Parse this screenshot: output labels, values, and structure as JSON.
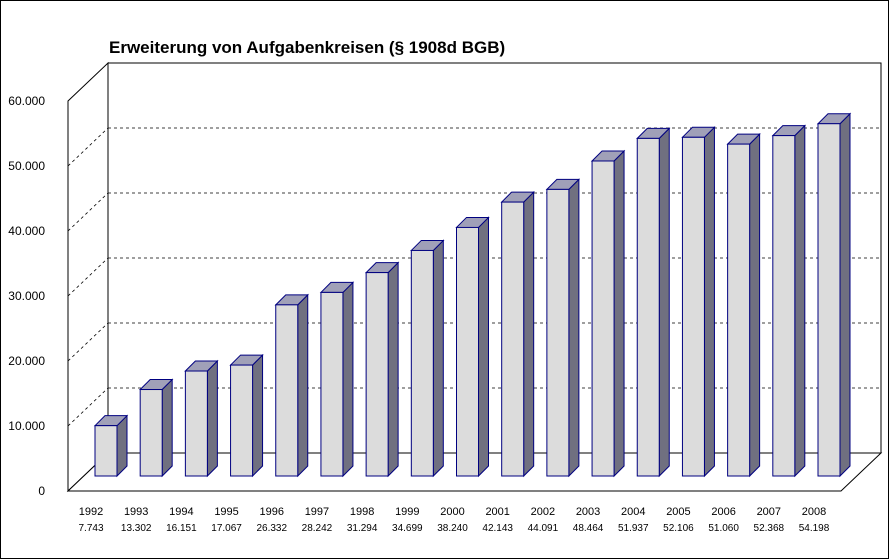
{
  "chart_data": {
    "type": "bar",
    "title": "Erweiterung von Aufgabenkreisen (§ 1908d BGB)",
    "xlabel": "",
    "ylabel": "",
    "ylim": [
      0,
      60000
    ],
    "yticks": [
      0,
      10000,
      20000,
      30000,
      40000,
      50000,
      60000
    ],
    "ytick_labels": [
      "0",
      "10.000",
      "20.000",
      "30.000",
      "40.000",
      "50.000",
      "60.000"
    ],
    "categories": [
      "1992",
      "1993",
      "1994",
      "1995",
      "1996",
      "1997",
      "1998",
      "1999",
      "2000",
      "2001",
      "2002",
      "2003",
      "2004",
      "2005",
      "2006",
      "2007",
      "2008"
    ],
    "values": [
      7743,
      13302,
      16151,
      17067,
      26332,
      28242,
      31294,
      34699,
      38240,
      42143,
      44091,
      48464,
      51937,
      52106,
      51060,
      52368,
      54198
    ],
    "value_labels": [
      "7.743",
      "13.302",
      "16.151",
      "17.067",
      "26.332",
      "28.242",
      "31.294",
      "34.699",
      "38.240",
      "42.143",
      "44.091",
      "48.464",
      "51.937",
      "52.106",
      "51.060",
      "52.368",
      "54.198"
    ],
    "style": "3d-column",
    "grid": true,
    "legend": "none",
    "colors": {
      "bar_front": "#dcdcdc",
      "bar_top": "#a0a0b8",
      "bar_side": "#707080",
      "bar_edge": "#000080"
    }
  }
}
